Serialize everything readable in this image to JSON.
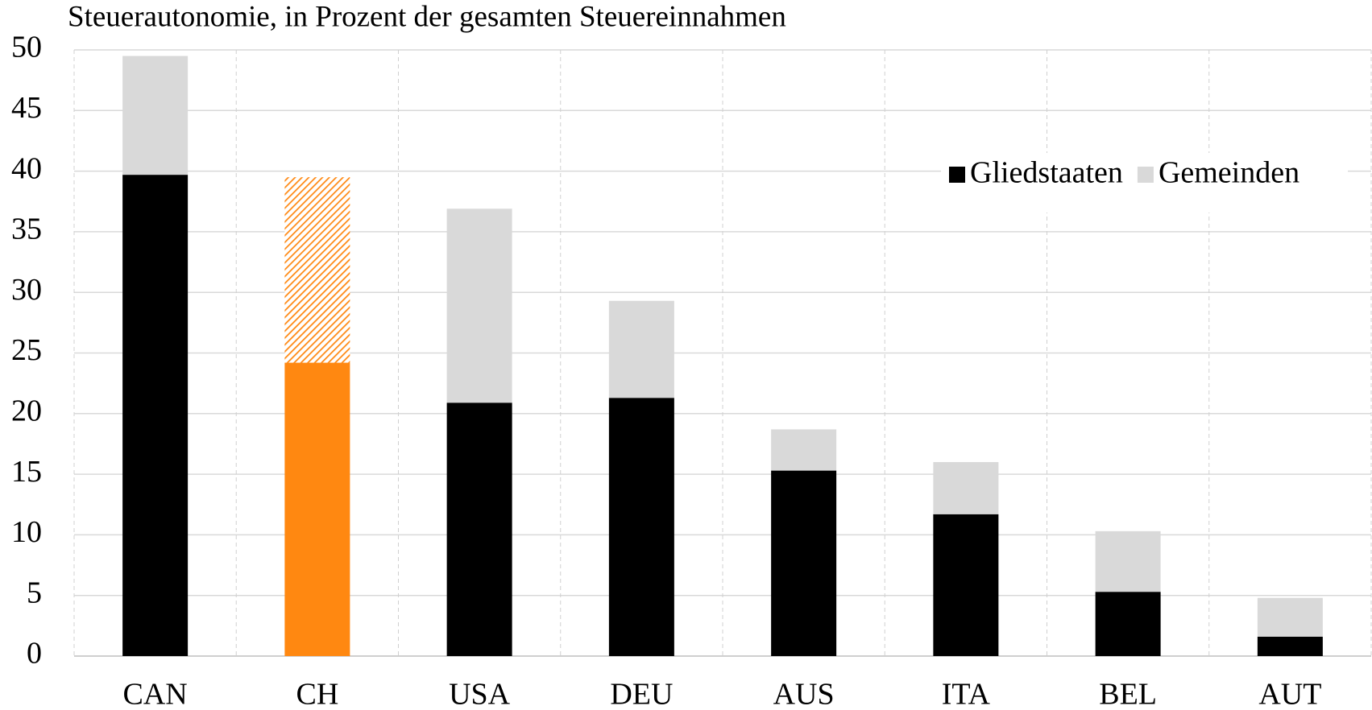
{
  "chart_data": {
    "type": "stacked_bar",
    "title": "Steuerautonomie, in Prozent der gesamten Steuereinnahmen",
    "categories": [
      "CAN",
      "CH",
      "USA",
      "DEU",
      "AUS",
      "ITA",
      "BEL",
      "AUT"
    ],
    "series": [
      {
        "name": "Gliedstaaten",
        "color": "#000000",
        "colors": [
          "#000000",
          "#ff8811",
          "#000000",
          "#000000",
          "#000000",
          "#000000",
          "#000000",
          "#000000"
        ],
        "values": [
          39.7,
          24.2,
          20.9,
          21.3,
          15.3,
          11.7,
          5.3,
          1.6
        ]
      },
      {
        "name": "Gemeinden",
        "color": "#d9d9d9",
        "colors": [
          "#d9d9d9",
          "#ff8811",
          "#d9d9d9",
          "#d9d9d9",
          "#d9d9d9",
          "#d9d9d9",
          "#d9d9d9",
          "#d9d9d9"
        ],
        "hatched": [
          false,
          true,
          false,
          false,
          false,
          false,
          false,
          false
        ],
        "values": [
          9.8,
          15.3,
          16.0,
          8.0,
          3.4,
          4.3,
          5.0,
          3.2
        ]
      }
    ],
    "ylim": [
      0,
      50
    ],
    "yticks": [
      0,
      5,
      10,
      15,
      20,
      25,
      30,
      35,
      40,
      45,
      50
    ],
    "grid": true,
    "legend": "upper right"
  }
}
